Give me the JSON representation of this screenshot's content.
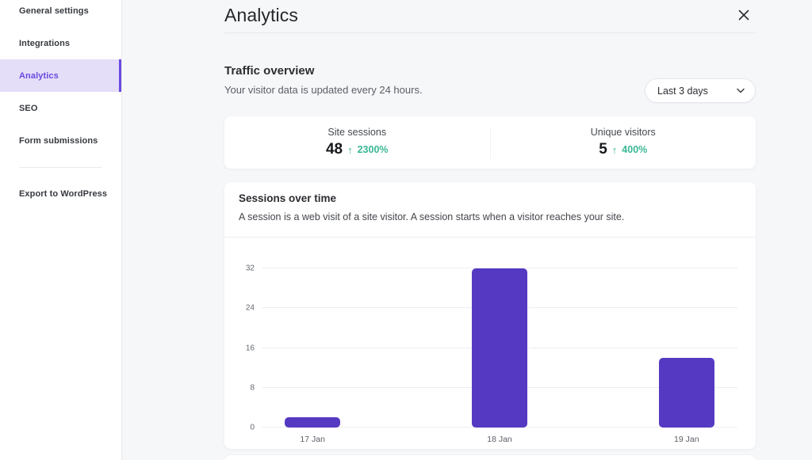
{
  "sidebar": {
    "items": [
      {
        "label": "General settings",
        "active": false
      },
      {
        "label": "Integrations",
        "active": false
      },
      {
        "label": "Analytics",
        "active": true
      },
      {
        "label": "SEO",
        "active": false
      },
      {
        "label": "Form submissions",
        "active": false
      }
    ],
    "export_label": "Export to WordPress"
  },
  "header": {
    "title": "Analytics"
  },
  "traffic": {
    "title": "Traffic overview",
    "subtitle": "Your visitor data is updated every 24 hours.",
    "range_selected": "Last 3 days"
  },
  "stats": [
    {
      "label": "Site sessions",
      "value": "48",
      "delta": "2300%",
      "direction": "up"
    },
    {
      "label": "Unique visitors",
      "value": "5",
      "delta": "400%",
      "direction": "up"
    }
  ],
  "sessions_card": {
    "title": "Sessions over time",
    "description": "A session is a web visit of a site visitor. A session starts when a visitor reaches your site."
  },
  "chart_data": {
    "type": "bar",
    "title": "Sessions over time",
    "categories": [
      "17 Jan",
      "18 Jan",
      "19 Jan"
    ],
    "values": [
      2,
      32,
      14
    ],
    "xlabel": "",
    "ylabel": "",
    "ylim": [
      0,
      32
    ],
    "yticks": [
      0,
      8,
      16,
      24,
      32
    ],
    "grid": true,
    "legend": false,
    "bar_color": "#5639c2"
  },
  "colors": {
    "accent_purple": "#6a48e0",
    "accent_purple_bg": "#e4def8",
    "bar_purple": "#5639c2",
    "positive_teal": "#3ab795",
    "page_bg": "#f6f7f9"
  },
  "icons": {
    "close": "close-icon",
    "chevron_down": "chevron-down-icon",
    "arrow_up": "arrow-up-icon"
  }
}
